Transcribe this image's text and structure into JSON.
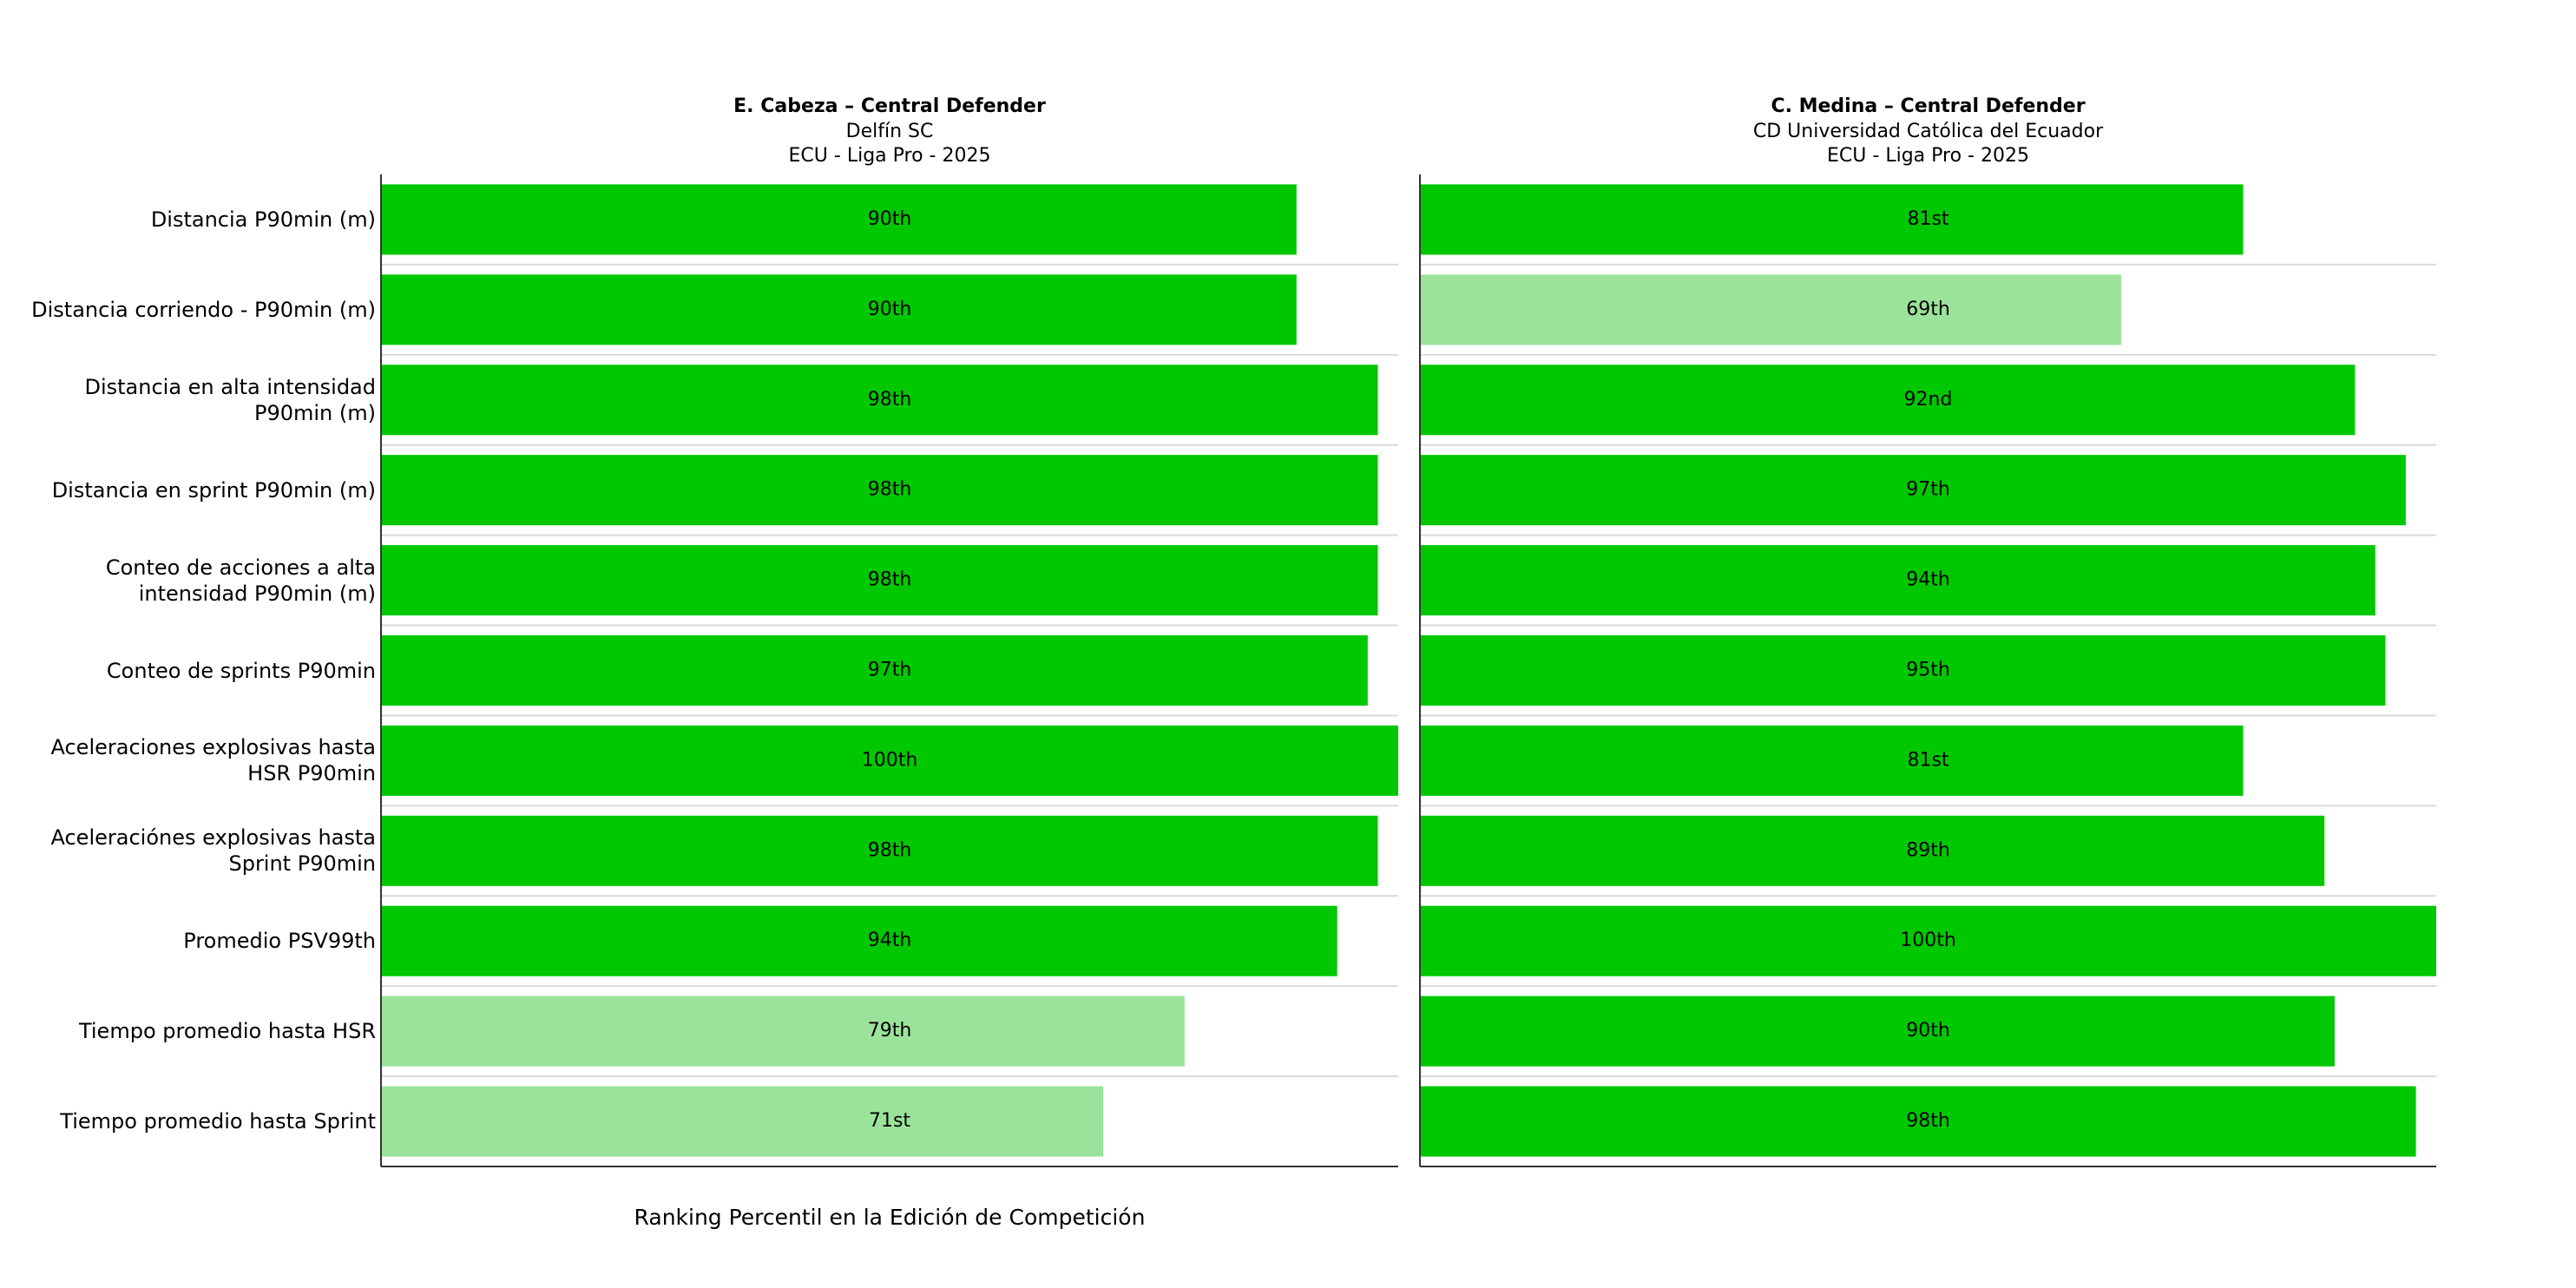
{
  "chart_data": [
    {
      "type": "barh",
      "title": "E. Cabeza – Central Defender",
      "subtitle": [
        "Delfín SC",
        "ECU - Liga Pro - 2025"
      ],
      "xlabel": "Ranking Percentil en la Edición de Competición",
      "categories": [
        "Distancia P90min (m)",
        "Distancia corriendo - P90min (m)",
        "Distancia en alta intensidad P90min (m)",
        "Distancia en sprint P90min (m)",
        "Conteo de acciones a alta intensidad P90min (m)",
        "Conteo de sprints P90min",
        "Aceleraciones explosivas hasta HSR P90min",
        "Aceleraciónes explosivas hasta Sprint P90min",
        "Promedio PSV99th",
        "Tiempo promedio hasta HSR",
        "Tiempo promedio hasta Sprint"
      ],
      "values": [
        90,
        90,
        98,
        98,
        98,
        97,
        100,
        98,
        94,
        79,
        71
      ],
      "value_labels": [
        "90th",
        "90th",
        "98th",
        "98th",
        "98th",
        "97th",
        "100th",
        "98th",
        "94th",
        "79th",
        "71st"
      ],
      "colors": [
        "#00c800",
        "#00c800",
        "#00c800",
        "#00c800",
        "#00c800",
        "#00c800",
        "#00c800",
        "#00c800",
        "#00c800",
        "#9be39b",
        "#9be39b"
      ],
      "xlim": [
        0,
        100
      ]
    },
    {
      "type": "barh",
      "title": "C. Medina – Central Defender",
      "subtitle": [
        "CD Universidad Católica del Ecuador",
        "ECU - Liga Pro - 2025"
      ],
      "values": [
        81,
        69,
        92,
        97,
        94,
        95,
        81,
        89,
        100,
        90,
        98
      ],
      "value_labels": [
        "81st",
        "69th",
        "92nd",
        "97th",
        "94th",
        "95th",
        "81st",
        "89th",
        "100th",
        "90th",
        "98th"
      ],
      "colors": [
        "#00c800",
        "#9be39b",
        "#00c800",
        "#00c800",
        "#00c800",
        "#00c800",
        "#00c800",
        "#00c800",
        "#00c800",
        "#00c800",
        "#00c800"
      ],
      "xlim": [
        0,
        100
      ]
    }
  ]
}
